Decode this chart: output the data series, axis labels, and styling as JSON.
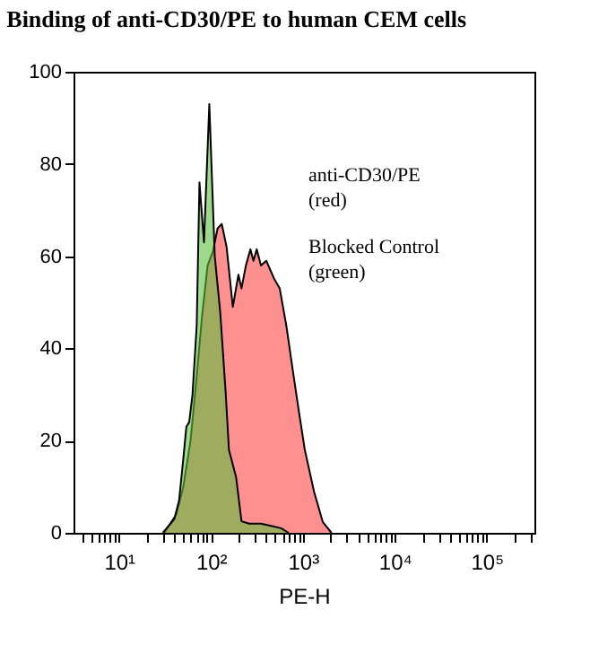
{
  "chart_data": {
    "type": "area",
    "title": "Binding of anti-CD30/PE to human CEM cells",
    "xlabel": "PE-H",
    "annotations": [
      "anti-CD30/PE",
      "(red)",
      "Blocked Control",
      "(green)"
    ],
    "log": "x",
    "grid": false,
    "xlim": [
      3.2,
      330000
    ],
    "xticks": [
      {
        "value": 4,
        "label": null
      },
      {
        "value": 5,
        "label": null
      },
      {
        "value": 6,
        "label": null
      },
      {
        "value": 7,
        "label": null
      },
      {
        "value": 8,
        "label": null
      },
      {
        "value": 9,
        "label": null
      },
      {
        "value": 10,
        "label": "10¹"
      },
      {
        "value": 20,
        "label": null
      },
      {
        "value": 30,
        "label": null
      },
      {
        "value": 40,
        "label": null
      },
      {
        "value": 50,
        "label": null
      },
      {
        "value": 60,
        "label": null
      },
      {
        "value": 70,
        "label": null
      },
      {
        "value": 80,
        "label": null
      },
      {
        "value": 90,
        "label": null
      },
      {
        "value": 100,
        "label": "10²"
      },
      {
        "value": 200,
        "label": null
      },
      {
        "value": 300,
        "label": null
      },
      {
        "value": 400,
        "label": null
      },
      {
        "value": 500,
        "label": null
      },
      {
        "value": 600,
        "label": null
      },
      {
        "value": 700,
        "label": null
      },
      {
        "value": 800,
        "label": null
      },
      {
        "value": 900,
        "label": null
      },
      {
        "value": 1000,
        "label": "10³"
      },
      {
        "value": 2000,
        "label": null
      },
      {
        "value": 3000,
        "label": null
      },
      {
        "value": 4000,
        "label": null
      },
      {
        "value": 5000,
        "label": null
      },
      {
        "value": 6000,
        "label": null
      },
      {
        "value": 7000,
        "label": null
      },
      {
        "value": 8000,
        "label": null
      },
      {
        "value": 9000,
        "label": null
      },
      {
        "value": 10000,
        "label": "10⁴"
      },
      {
        "value": 20000,
        "label": null
      },
      {
        "value": 30000,
        "label": null
      },
      {
        "value": 40000,
        "label": null
      },
      {
        "value": 50000,
        "label": null
      },
      {
        "value": 60000,
        "label": null
      },
      {
        "value": 70000,
        "label": null
      },
      {
        "value": 80000,
        "label": null
      },
      {
        "value": 90000,
        "label": null
      },
      {
        "value": 100000,
        "label": "10⁵"
      },
      {
        "value": 200000,
        "label": null
      },
      {
        "value": 300000,
        "label": null
      }
    ],
    "ylim": [
      0,
      100
    ],
    "yticks": [
      0,
      20,
      40,
      60,
      80,
      100
    ],
    "series": [
      {
        "color": "#ff9090",
        "x": [
          31,
          42,
          50,
          60,
          70,
          80,
          92,
          105,
          118,
          131,
          148,
          173,
          199,
          215,
          240,
          269,
          290,
          315,
          350,
          400,
          490,
          560,
          660,
          780,
          910,
          1050,
          1320,
          1650,
          2050
        ],
        "values": [
          0,
          4,
          10,
          20,
          34,
          47,
          58,
          61,
          66,
          67,
          62,
          49,
          56,
          53,
          58,
          61.5,
          59,
          61.5,
          58,
          59,
          55,
          53,
          45,
          35,
          26,
          18,
          9,
          2.3,
          0
        ]
      },
      {
        "color": "#5fbf3f",
        "x": [
          30,
          40,
          45,
          50,
          54,
          58,
          63,
          70,
          75,
          84,
          96,
          110,
          126,
          144,
          157,
          188,
          215,
          260,
          350,
          450,
          580,
          700
        ],
        "values": [
          0,
          3,
          7,
          16,
          23,
          24,
          30,
          45,
          76,
          63,
          93,
          60,
          48,
          31,
          18,
          12,
          2.5,
          2,
          2,
          1.5,
          1,
          0
        ]
      }
    ]
  }
}
